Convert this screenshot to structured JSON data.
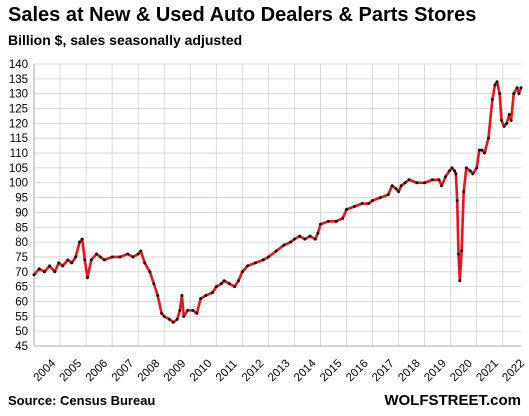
{
  "chart_data": {
    "type": "line",
    "title": "Sales at New & Used Auto Dealers & Parts Stores",
    "subtitle": "Billion $, sales seasonally adjusted",
    "xlabel": "",
    "ylabel": "",
    "xlim": [
      2004,
      2022.7
    ],
    "ylim": [
      45,
      140
    ],
    "yticks": [
      45,
      50,
      55,
      60,
      65,
      70,
      75,
      80,
      85,
      90,
      95,
      100,
      105,
      110,
      115,
      120,
      125,
      130,
      135,
      140
    ],
    "xticks": [
      "2004",
      "2005",
      "2006",
      "2007",
      "2008",
      "2009",
      "2010",
      "2011",
      "2012",
      "2013",
      "2014",
      "2015",
      "2016",
      "2017",
      "2018",
      "2019",
      "2020",
      "2021",
      "2022"
    ],
    "grid": true,
    "legend": "none",
    "line_color": "#e8141b",
    "marker_color": "#111111",
    "series": [
      {
        "values": [
          [
            2004.0,
            69
          ],
          [
            2004.2,
            71
          ],
          [
            2004.4,
            70
          ],
          [
            2004.6,
            72
          ],
          [
            2004.8,
            70
          ],
          [
            2004.95,
            73
          ],
          [
            2005.1,
            72
          ],
          [
            2005.3,
            74
          ],
          [
            2005.45,
            73
          ],
          [
            2005.6,
            75
          ],
          [
            2005.75,
            80
          ],
          [
            2005.85,
            81
          ],
          [
            2005.95,
            74
          ],
          [
            2006.05,
            68
          ],
          [
            2006.2,
            74
          ],
          [
            2006.4,
            76
          ],
          [
            2006.55,
            75
          ],
          [
            2006.7,
            74
          ],
          [
            2007.0,
            75
          ],
          [
            2007.3,
            75
          ],
          [
            2007.6,
            76
          ],
          [
            2007.8,
            75
          ],
          [
            2008.0,
            76
          ],
          [
            2008.1,
            77
          ],
          [
            2008.25,
            73
          ],
          [
            2008.45,
            70
          ],
          [
            2008.6,
            66
          ],
          [
            2008.75,
            62
          ],
          [
            2008.9,
            56
          ],
          [
            2009.0,
            55
          ],
          [
            2009.2,
            54
          ],
          [
            2009.35,
            53
          ],
          [
            2009.5,
            54
          ],
          [
            2009.6,
            57
          ],
          [
            2009.68,
            62
          ],
          [
            2009.75,
            55
          ],
          [
            2009.9,
            57
          ],
          [
            2010.1,
            57
          ],
          [
            2010.25,
            56
          ],
          [
            2010.4,
            61
          ],
          [
            2010.6,
            62
          ],
          [
            2010.85,
            63
          ],
          [
            2011.0,
            65
          ],
          [
            2011.2,
            66
          ],
          [
            2011.3,
            67
          ],
          [
            2011.5,
            66
          ],
          [
            2011.7,
            65
          ],
          [
            2011.85,
            67
          ],
          [
            2012.0,
            70
          ],
          [
            2012.2,
            72
          ],
          [
            2012.5,
            73
          ],
          [
            2012.8,
            74
          ],
          [
            2013.0,
            75
          ],
          [
            2013.3,
            77
          ],
          [
            2013.6,
            79
          ],
          [
            2013.85,
            80
          ],
          [
            2014.0,
            81
          ],
          [
            2014.2,
            82
          ],
          [
            2014.4,
            81
          ],
          [
            2014.6,
            82
          ],
          [
            2014.8,
            81
          ],
          [
            2014.9,
            83
          ],
          [
            2015.0,
            86
          ],
          [
            2015.3,
            87
          ],
          [
            2015.6,
            87
          ],
          [
            2015.85,
            88
          ],
          [
            2016.0,
            91
          ],
          [
            2016.3,
            92
          ],
          [
            2016.6,
            93
          ],
          [
            2016.85,
            93
          ],
          [
            2017.0,
            94
          ],
          [
            2017.3,
            95
          ],
          [
            2017.6,
            96
          ],
          [
            2017.75,
            99
          ],
          [
            2017.9,
            98
          ],
          [
            2018.0,
            97
          ],
          [
            2018.1,
            99
          ],
          [
            2018.25,
            100
          ],
          [
            2018.4,
            101
          ],
          [
            2018.7,
            100
          ],
          [
            2019.0,
            100
          ],
          [
            2019.3,
            101
          ],
          [
            2019.55,
            101
          ],
          [
            2019.65,
            99
          ],
          [
            2019.8,
            102
          ],
          [
            2019.95,
            104
          ],
          [
            2020.05,
            105
          ],
          [
            2020.15,
            104
          ],
          [
            2020.2,
            103
          ],
          [
            2020.25,
            94
          ],
          [
            2020.3,
            76
          ],
          [
            2020.35,
            67
          ],
          [
            2020.42,
            77
          ],
          [
            2020.5,
            97
          ],
          [
            2020.6,
            105
          ],
          [
            2020.75,
            104
          ],
          [
            2020.85,
            103
          ],
          [
            2021.0,
            105
          ],
          [
            2021.1,
            111
          ],
          [
            2021.2,
            111
          ],
          [
            2021.3,
            110
          ],
          [
            2021.45,
            115
          ],
          [
            2021.6,
            128
          ],
          [
            2021.7,
            133
          ],
          [
            2021.78,
            134
          ],
          [
            2021.88,
            130
          ],
          [
            2021.95,
            121
          ],
          [
            2022.05,
            119
          ],
          [
            2022.15,
            120
          ],
          [
            2022.25,
            123
          ],
          [
            2022.32,
            121
          ],
          [
            2022.42,
            130
          ],
          [
            2022.55,
            132
          ],
          [
            2022.62,
            130
          ],
          [
            2022.7,
            132
          ]
        ]
      }
    ],
    "source": "Source: Census Bureau",
    "credit": "WOLFSTREET.com"
  }
}
